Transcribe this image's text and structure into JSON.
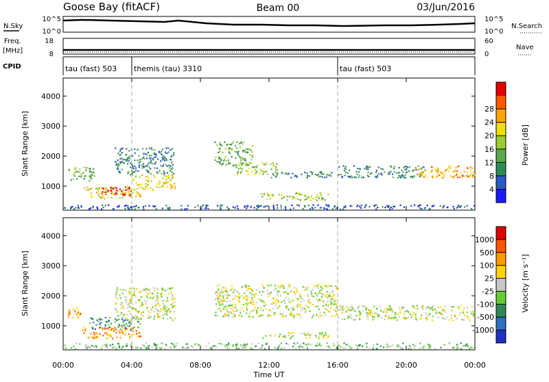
{
  "header": {
    "station": "Goose Bay (fitACF)",
    "beam": "Beam 00",
    "date": "03/Jun/2016"
  },
  "top_panels": {
    "nsky_label": "N.Sky",
    "nsky_ticks": [
      "10^5",
      "10^0"
    ],
    "nsearch_label": "N.Search",
    "nsearch_ticks": [
      "10^5",
      "10^0"
    ],
    "freq_label": "Freq.",
    "freq_unit": "[MHz]",
    "freq_ticks": [
      "18",
      "8"
    ],
    "nave_label": "Nave",
    "nave_ticks": [
      "60",
      "0"
    ],
    "cpid_label": "CPID",
    "cpid_segments": [
      {
        "label": "tau (fast) 503",
        "start_h": 0,
        "end_h": 4
      },
      {
        "label": "themis (tau) 3310",
        "start_h": 4,
        "end_h": 16
      },
      {
        "label": "tau (fast) 503",
        "start_h": 16,
        "end_h": 24
      }
    ]
  },
  "x_axis": {
    "label": "Time UT",
    "range_h": [
      0,
      24
    ],
    "ticks": [
      "00:00",
      "04:00",
      "08:00",
      "12:00",
      "16:00",
      "20:00",
      "00:00"
    ]
  },
  "y_axis": {
    "label": "Slant Range [km]",
    "range_km": [
      200,
      4600
    ],
    "ticks": [
      "1000",
      "2000",
      "3000",
      "4000"
    ]
  },
  "power_scale": {
    "label": "Power [dB]",
    "ticks": [
      "4",
      "8",
      "12",
      "16",
      "20",
      "24",
      "28"
    ],
    "colors": [
      "#1a1aff",
      "#2a58c8",
      "#2e8b57",
      "#5aa84a",
      "#9acd32",
      "#f0e000",
      "#ffa500",
      "#ff5a00",
      "#e00000"
    ]
  },
  "velocity_scale": {
    "label": "Velocity [m s⁻¹]",
    "ticks": [
      "1000",
      "500",
      "100",
      "25",
      "-25",
      "-100",
      "-500",
      "-1000"
    ],
    "colors": [
      "#2030c0",
      "#2f6fbf",
      "#2e8b57",
      "#66cc33",
      "#c8c8c8",
      "#ffd400",
      "#ff9a00",
      "#ff5500",
      "#e00000"
    ]
  },
  "chart_data": [
    {
      "type": "heatmap",
      "name": "power",
      "x_unit": "hours UT",
      "y_unit": "km",
      "xlim": [
        0,
        24
      ],
      "ylim": [
        200,
        4600
      ],
      "regions": [
        {
          "t0": 0.3,
          "t1": 1.8,
          "r0": 1200,
          "r1": 1700,
          "level": 3
        },
        {
          "t0": 1.2,
          "t1": 4.5,
          "r0": 600,
          "r1": 1000,
          "level": 5
        },
        {
          "t0": 2.2,
          "t1": 4.0,
          "r0": 700,
          "r1": 1000,
          "level": 8
        },
        {
          "t0": 4.0,
          "t1": 6.5,
          "r0": 900,
          "r1": 1400,
          "level": 5
        },
        {
          "t0": 3.0,
          "t1": 6.5,
          "r0": 1400,
          "r1": 2300,
          "level": 2
        },
        {
          "t0": 8.8,
          "t1": 11.0,
          "r0": 1700,
          "r1": 2500,
          "level": 3
        },
        {
          "t0": 10.0,
          "t1": 12.5,
          "r0": 1400,
          "r1": 1800,
          "level": 4
        },
        {
          "t0": 11.5,
          "t1": 15.5,
          "r0": 550,
          "r1": 800,
          "level": 4
        },
        {
          "t0": 12.0,
          "t1": 16.0,
          "r0": 1300,
          "r1": 1500,
          "level": 2
        },
        {
          "t0": 16.0,
          "t1": 21.0,
          "r0": 1300,
          "r1": 1700,
          "level": 2
        },
        {
          "t0": 20.5,
          "t1": 24.0,
          "r0": 1300,
          "r1": 1700,
          "level": 6
        },
        {
          "t0": 0.0,
          "t1": 24.0,
          "r0": 250,
          "r1": 400,
          "level": 1
        }
      ]
    },
    {
      "type": "heatmap",
      "name": "velocity",
      "x_unit": "hours UT",
      "y_unit": "km",
      "xlim": [
        0,
        24
      ],
      "ylim": [
        200,
        4600
      ],
      "regions": [
        {
          "t0": 0.2,
          "t1": 1.0,
          "r0": 1300,
          "r1": 1600,
          "level": 6
        },
        {
          "t0": 1.0,
          "t1": 4.5,
          "r0": 600,
          "r1": 1000,
          "level": 6
        },
        {
          "t0": 1.5,
          "t1": 4.5,
          "r0": 900,
          "r1": 1300,
          "level": 2
        },
        {
          "t0": 3.0,
          "t1": 6.5,
          "r0": 1200,
          "r1": 2300,
          "level": 4
        },
        {
          "t0": 8.8,
          "t1": 16.0,
          "r0": 1300,
          "r1": 2400,
          "level": 4
        },
        {
          "t0": 11.5,
          "t1": 15.5,
          "r0": 600,
          "r1": 800,
          "level": 4
        },
        {
          "t0": 16.0,
          "t1": 24.0,
          "r0": 1200,
          "r1": 1700,
          "level": 4
        },
        {
          "t0": 0.0,
          "t1": 24.0,
          "r0": 250,
          "r1": 450,
          "level": 3
        }
      ]
    }
  ]
}
